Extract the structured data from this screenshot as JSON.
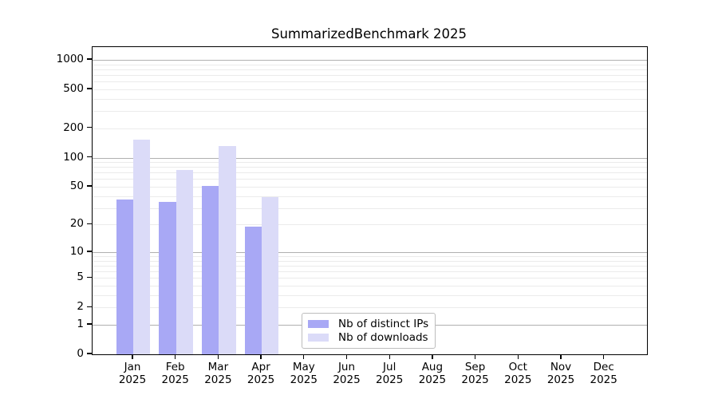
{
  "chart_data": {
    "type": "bar",
    "title": "SummarizedBenchmark 2025",
    "categories": [
      "Jan",
      "Feb",
      "Mar",
      "Apr",
      "May",
      "Jun",
      "Jul",
      "Aug",
      "Sep",
      "Oct",
      "Nov",
      "Dec"
    ],
    "category_sublabel": "2025",
    "series": [
      {
        "name": "Nb of distinct IPs",
        "color": "#a8a8f5",
        "values": [
          37,
          35,
          51,
          19,
          null,
          null,
          null,
          null,
          null,
          null,
          null,
          null
        ]
      },
      {
        "name": "Nb of downloads",
        "color": "#dbdbf8",
        "values": [
          152,
          75,
          131,
          39,
          null,
          null,
          null,
          null,
          null,
          null,
          null,
          null
        ]
      }
    ],
    "xlabel": "",
    "ylabel": "",
    "yticks": [
      0,
      1,
      2,
      5,
      10,
      20,
      50,
      100,
      200,
      500,
      1000
    ],
    "ylim": [
      0,
      1350
    ],
    "yscale": "log10(1+v)",
    "grid": true,
    "legend_position": "lower-center-inside",
    "colors": {
      "grid_major": "#b0b0b0",
      "grid_minor": "#ebebeb",
      "axis_frame": "#000000",
      "background": "#ffffff"
    }
  }
}
